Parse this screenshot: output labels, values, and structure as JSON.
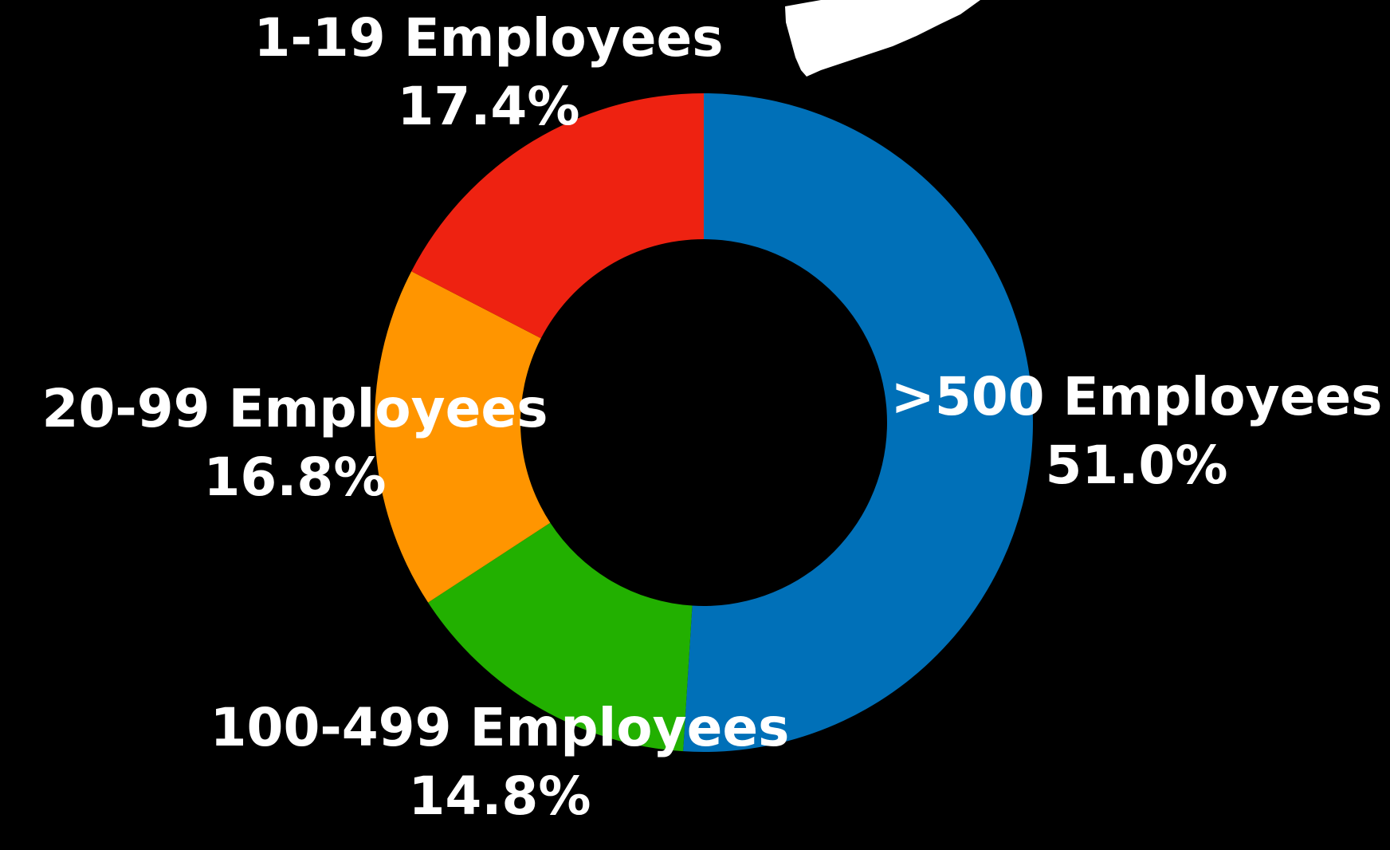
{
  "chart_data": {
    "type": "pie",
    "style": "donut",
    "slices": [
      {
        "label": ">500 Employees",
        "value": 51.0,
        "value_label": "51.0%",
        "color": "#0070B8"
      },
      {
        "label": "100-499 Employees",
        "value": 14.8,
        "value_label": "14.8%",
        "color": "#22B000"
      },
      {
        "label": "20-99 Employees",
        "value": 16.8,
        "value_label": "16.8%",
        "color": "#FF9500"
      },
      {
        "label": "1-19 Employees",
        "value": 17.4,
        "value_label": "17.4%",
        "color": "#EE2211"
      }
    ],
    "background": "#000000",
    "label_color": "#FFFFFF"
  }
}
